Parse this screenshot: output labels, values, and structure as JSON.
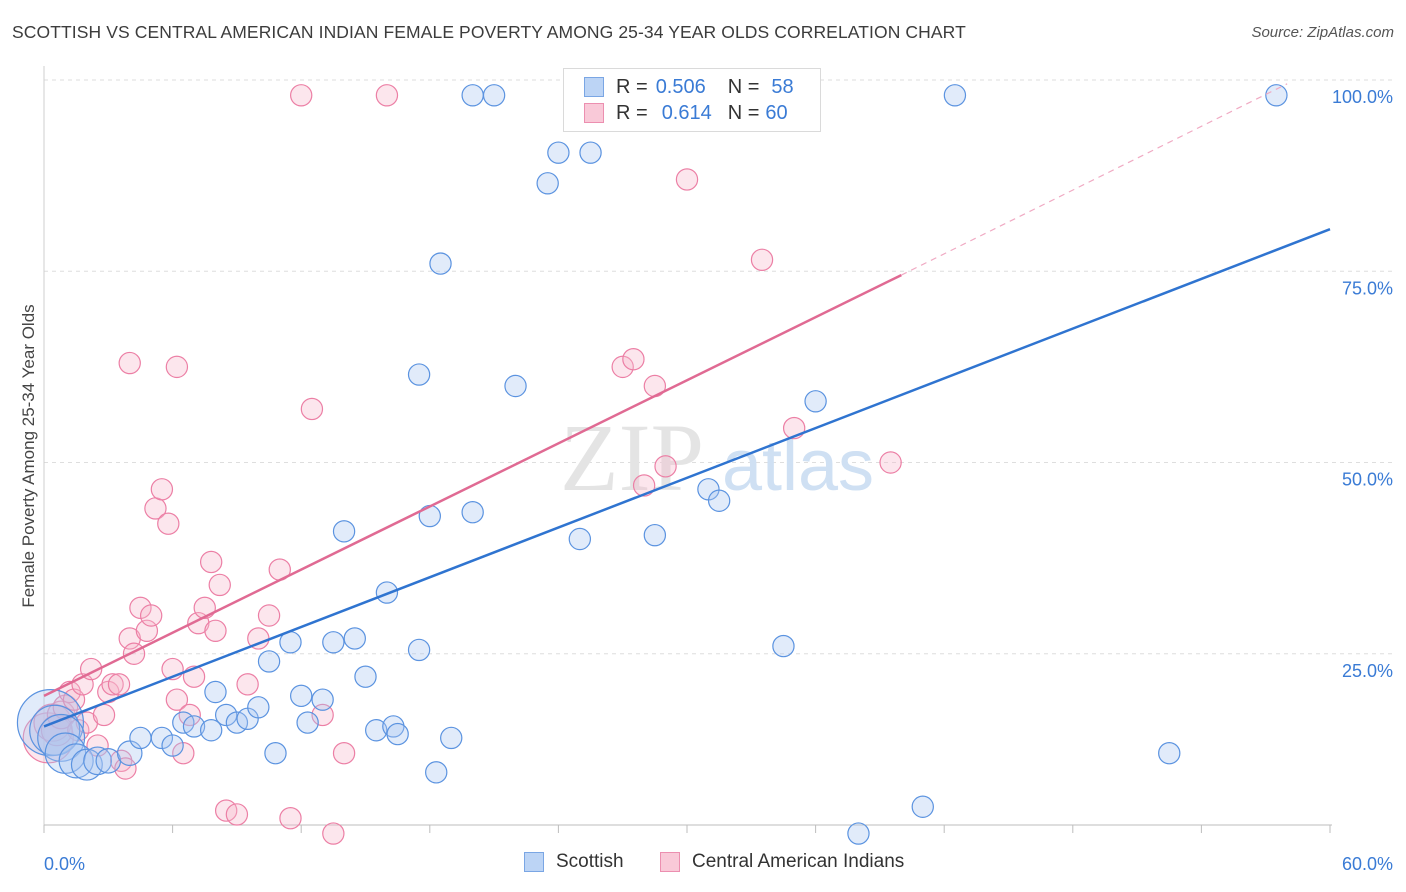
{
  "header": {
    "title": "SCOTTISH VS CENTRAL AMERICAN INDIAN FEMALE POVERTY AMONG 25-34 YEAR OLDS CORRELATION CHART",
    "source": "Source: ZipAtlas.com"
  },
  "legend": {
    "r_label": "R =",
    "n_label": "N =",
    "rows": [
      {
        "r": "0.506",
        "n": "58"
      },
      {
        "r": "0.614",
        "n": "60"
      }
    ]
  },
  "watermark": {
    "zip": "ZIP",
    "atlas": "atlas"
  },
  "chart_data": {
    "type": "scatter",
    "ylabel": "Female Poverty Among 25-34 Year Olds",
    "xlim": [
      0,
      60
    ],
    "ylim": [
      0,
      100
    ],
    "x_tick_labels": [
      "0.0%",
      "60.0%"
    ],
    "y_tick_labels": [
      "25.0%",
      "50.0%",
      "75.0%",
      "100.0%"
    ],
    "y_ticks": [
      25,
      50,
      75,
      100
    ],
    "grid": true,
    "legend_position": "top-center",
    "colors": {
      "scottish": "#5b93e0",
      "central": "#ec7fa5",
      "scottish_line": "#2f74d0",
      "central_line": "#e06a93"
    },
    "series": [
      {
        "name": "Scottish",
        "color": "#5b93e0",
        "trend": {
          "x": [
            0,
            60
          ],
          "y": [
            15.5,
            80.5
          ]
        },
        "points": [
          [
            0.3,
            16,
            40
          ],
          [
            0.5,
            15,
            30
          ],
          [
            0.8,
            14,
            28
          ],
          [
            1,
            12,
            24
          ],
          [
            1.5,
            11,
            20
          ],
          [
            2,
            10.5,
            18
          ],
          [
            2.5,
            11,
            16
          ],
          [
            3,
            11,
            14
          ],
          [
            4,
            12,
            14
          ],
          [
            4.5,
            14,
            12
          ],
          [
            5.5,
            14,
            12
          ],
          [
            6,
            13,
            12
          ],
          [
            6.5,
            16,
            12
          ],
          [
            7,
            15.5,
            12
          ],
          [
            7.8,
            15,
            12
          ],
          [
            8,
            20,
            12
          ],
          [
            8.5,
            17,
            12
          ],
          [
            9,
            16,
            12
          ],
          [
            9.5,
            16.5,
            12
          ],
          [
            10,
            18,
            12
          ],
          [
            10.5,
            24,
            12
          ],
          [
            10.8,
            12,
            12
          ],
          [
            11.5,
            26.5,
            12
          ],
          [
            12,
            19.5,
            12
          ],
          [
            12.3,
            16,
            12
          ],
          [
            13,
            19,
            12
          ],
          [
            13.5,
            26.5,
            12
          ],
          [
            14,
            41,
            12
          ],
          [
            14.5,
            27,
            12
          ],
          [
            15,
            22,
            12
          ],
          [
            15.5,
            15,
            12
          ],
          [
            16,
            33,
            12
          ],
          [
            16.3,
            15.5,
            12
          ],
          [
            16.5,
            14.5,
            12
          ],
          [
            17.5,
            25.5,
            12
          ],
          [
            18,
            43,
            12
          ],
          [
            18.3,
            9.5,
            12
          ],
          [
            19,
            14,
            12
          ],
          [
            20,
            43.5,
            12
          ],
          [
            17.5,
            61.5,
            12
          ],
          [
            18.5,
            76,
            12
          ],
          [
            22,
            60,
            12
          ],
          [
            20,
            98,
            12
          ],
          [
            21,
            98,
            12
          ],
          [
            23.5,
            86.5,
            12
          ],
          [
            24,
            90.5,
            12
          ],
          [
            25,
            40,
            12
          ],
          [
            25.5,
            90.5,
            12
          ],
          [
            28.5,
            40.5,
            12
          ],
          [
            31,
            46.5,
            12
          ],
          [
            31.5,
            45,
            12
          ],
          [
            34.5,
            26,
            12
          ],
          [
            36,
            58,
            12
          ],
          [
            38,
            1.5,
            12
          ],
          [
            41,
            5,
            12
          ],
          [
            42.5,
            98,
            12
          ],
          [
            52.5,
            12,
            12
          ],
          [
            57.5,
            98,
            12
          ]
        ]
      },
      {
        "name": "Central American Indians",
        "color": "#ec7fa5",
        "trend": {
          "x": [
            0,
            40
          ],
          "y": [
            19.5,
            74.5
          ]
        },
        "trend_dashed": {
          "x": [
            40,
            58
          ],
          "y": [
            74.5,
            99.5
          ]
        },
        "points": [
          [
            0.2,
            14,
            30
          ],
          [
            0.4,
            16,
            22
          ],
          [
            0.6,
            15,
            18
          ],
          [
            0.8,
            17,
            16
          ],
          [
            1,
            18,
            14
          ],
          [
            1.2,
            20,
            12
          ],
          [
            1.4,
            19,
            12
          ],
          [
            1.6,
            15,
            12
          ],
          [
            1.8,
            21,
            12
          ],
          [
            2,
            16,
            12
          ],
          [
            2.2,
            23,
            12
          ],
          [
            2.5,
            13,
            12
          ],
          [
            2.8,
            17,
            12
          ],
          [
            3,
            20,
            12
          ],
          [
            3.2,
            21,
            12
          ],
          [
            3.5,
            21,
            12
          ],
          [
            3.6,
            11,
            12
          ],
          [
            3.8,
            10,
            12
          ],
          [
            4,
            27,
            12
          ],
          [
            4.2,
            25,
            12
          ],
          [
            4.5,
            31,
            12
          ],
          [
            4.8,
            28,
            12
          ],
          [
            5,
            30,
            12
          ],
          [
            5.2,
            44,
            12
          ],
          [
            5.5,
            46.5,
            12
          ],
          [
            5.8,
            42,
            12
          ],
          [
            6,
            23,
            12
          ],
          [
            6.2,
            19,
            12
          ],
          [
            6.5,
            12,
            12
          ],
          [
            6.8,
            17,
            12
          ],
          [
            7,
            22,
            12
          ],
          [
            7.2,
            29,
            12
          ],
          [
            7.5,
            31,
            12
          ],
          [
            7.8,
            37,
            12
          ],
          [
            8,
            28,
            12
          ],
          [
            8.2,
            34,
            12
          ],
          [
            8.5,
            4.5,
            12
          ],
          [
            9,
            4,
            12
          ],
          [
            9.5,
            21,
            12
          ],
          [
            10,
            27,
            12
          ],
          [
            10.5,
            30,
            12
          ],
          [
            11,
            36,
            12
          ],
          [
            11.5,
            3.5,
            12
          ],
          [
            12,
            98,
            12
          ],
          [
            12.5,
            57,
            12
          ],
          [
            13,
            17,
            12
          ],
          [
            13.5,
            1.5,
            12
          ],
          [
            14,
            12,
            12
          ],
          [
            16,
            98,
            12
          ],
          [
            4,
            63,
            12
          ],
          [
            6.2,
            62.5,
            12
          ],
          [
            27,
            62.5,
            12
          ],
          [
            27.5,
            63.5,
            12
          ],
          [
            28,
            47,
            12
          ],
          [
            28.5,
            60,
            12
          ],
          [
            29,
            49.5,
            12
          ],
          [
            30,
            87,
            12
          ],
          [
            33.5,
            76.5,
            12
          ],
          [
            35,
            54.5,
            12
          ],
          [
            39.5,
            50,
            12
          ]
        ]
      }
    ]
  },
  "bottom_legend": [
    "Scottish",
    "Central American Indians"
  ]
}
